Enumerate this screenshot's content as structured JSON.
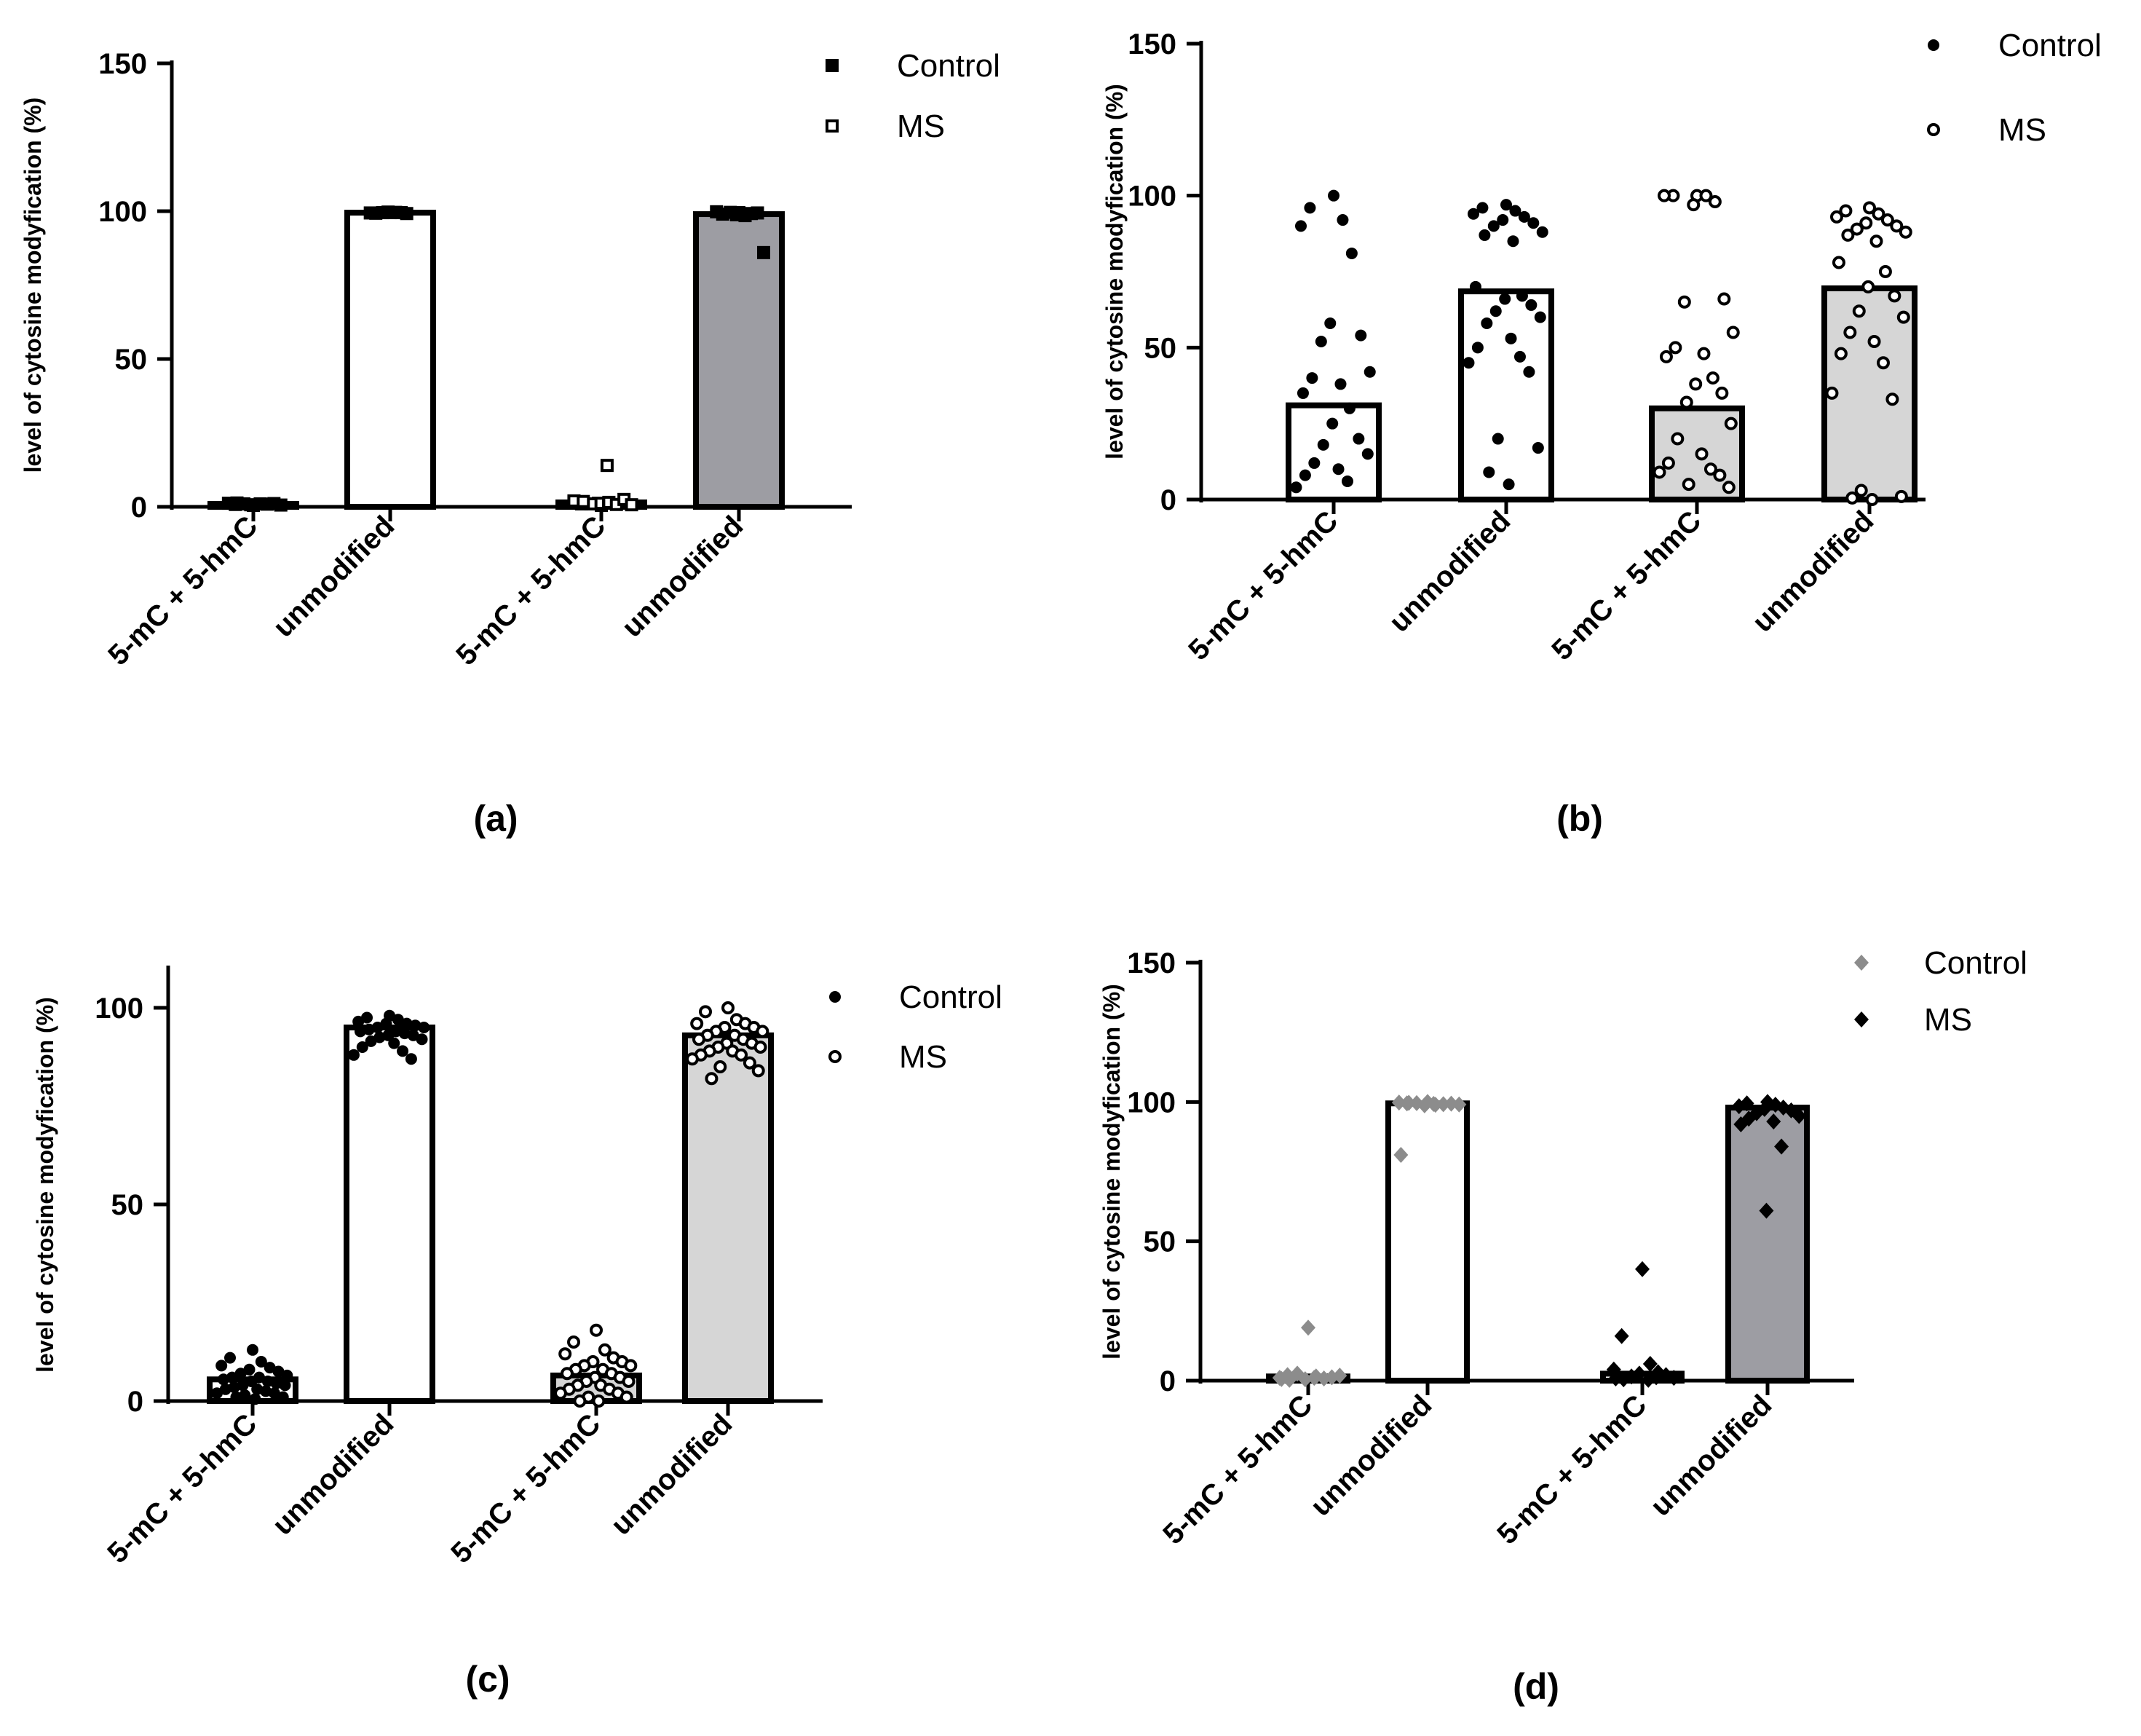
{
  "figure": {
    "panels": [
      {
        "label": "(a)"
      },
      {
        "label": "(b)"
      },
      {
        "label": "(c)"
      },
      {
        "label": "(d)"
      }
    ]
  },
  "chart_data": [
    {
      "id": "a",
      "type": "bar",
      "title": "",
      "xlabel": "",
      "ylabel": "level of cytosine modyfication (%)",
      "ylim": [
        0,
        150
      ],
      "yticks": [
        0,
        50,
        100,
        150
      ],
      "categories": [
        "5-mC + 5-hmC",
        "unmodified",
        "5-mC + 5-hmC",
        "unmodified"
      ],
      "groups": [
        "Control",
        "Control",
        "MS",
        "MS"
      ],
      "values": [
        1,
        99.5,
        1.5,
        99
      ],
      "bar_fills": [
        "#ffffff",
        "#ffffff",
        "#ffffff",
        "#9d9da3"
      ],
      "marker_styles": [
        "filled-square",
        "filled-square",
        "open-square",
        "filled-square"
      ],
      "points": [
        [
          0.5,
          0.8,
          1.0,
          1.2,
          0.9,
          0.7,
          1.1,
          1.0,
          0.6,
          1.3
        ],
        [
          99.5,
          99.3,
          99.6,
          99.4,
          99.5,
          99.7,
          99.2,
          99.5
        ],
        [
          0.5,
          1.0,
          1.5,
          2.0,
          0.8,
          1.2,
          2.5,
          1.0,
          0.7,
          1.8,
          14
        ],
        [
          99.5,
          99.0,
          98.5,
          99.8,
          99.2,
          98.8,
          99.4,
          99.6,
          86
        ]
      ],
      "legend": [
        {
          "name": "Control",
          "marker": "filled-square"
        },
        {
          "name": "MS",
          "marker": "open-square"
        }
      ],
      "legend_position": "top-right"
    },
    {
      "id": "b",
      "type": "bar",
      "title": "",
      "xlabel": "",
      "ylabel": "level of cytosine modyfication (%)",
      "ylim": [
        0,
        150
      ],
      "yticks": [
        0,
        50,
        100,
        150
      ],
      "categories": [
        "5-mC + 5-hmC",
        "unmodified",
        "5-mC + 5-hmC",
        "unmodified"
      ],
      "groups": [
        "Control",
        "Control",
        "MS",
        "MS"
      ],
      "values": [
        31,
        68.5,
        30,
        69.5
      ],
      "bar_fills": [
        "#ffffff",
        "#ffffff",
        "#d6d6d6",
        "#d6d6d6"
      ],
      "marker_styles": [
        "filled-circle",
        "filled-circle",
        "open-circle",
        "open-circle"
      ],
      "points": [
        [
          100,
          96,
          92,
          90,
          81,
          58,
          54,
          52,
          42,
          40,
          38,
          35,
          30,
          25,
          20,
          18,
          15,
          12,
          10,
          8,
          6,
          4
        ],
        [
          97,
          96,
          95,
          94,
          93,
          92,
          91,
          90,
          88,
          87,
          85,
          70,
          67,
          66,
          64,
          62,
          60,
          58,
          53,
          50,
          47,
          45,
          42,
          20,
          17,
          9,
          5
        ],
        [
          100,
          100,
          100,
          100,
          98,
          97,
          66,
          65,
          55,
          50,
          48,
          47,
          40,
          38,
          35,
          32,
          25,
          20,
          15,
          12,
          10,
          9,
          8,
          5,
          4
        ],
        [
          96,
          95,
          94,
          93,
          92,
          91,
          90,
          89,
          88,
          87,
          85,
          78,
          75,
          70,
          67,
          62,
          60,
          55,
          52,
          48,
          45,
          35,
          33,
          3,
          1,
          0.5,
          0
        ]
      ],
      "legend": [
        {
          "name": "Control",
          "marker": "filled-circle"
        },
        {
          "name": "MS",
          "marker": "open-circle"
        }
      ],
      "legend_position": "top-right"
    },
    {
      "id": "c",
      "type": "bar",
      "title": "",
      "xlabel": "",
      "ylabel": "level of cytosine modyfication (%)",
      "ylim": [
        0,
        110
      ],
      "yticks": [
        0,
        50,
        100
      ],
      "categories": [
        "5-mC + 5-hmC",
        "unmodified",
        "5-mC + 5-hmC",
        "unmodified"
      ],
      "groups": [
        "Control",
        "Control",
        "MS",
        "MS"
      ],
      "values": [
        5.5,
        95,
        6.5,
        93
      ],
      "bar_fills": [
        "#ffffff",
        "#ffffff",
        "#d6d6d6",
        "#d6d6d6"
      ],
      "marker_styles": [
        "filled-circle",
        "filled-circle",
        "open-circle",
        "open-circle"
      ],
      "points": [
        [
          13,
          11,
          10,
          9,
          8.5,
          8,
          7.5,
          7,
          6.5,
          6,
          6,
          5.5,
          5,
          5,
          4.5,
          4,
          4,
          3.5,
          3,
          3,
          2.5,
          2,
          2,
          1.5,
          1,
          1,
          0.5
        ],
        [
          98,
          97.5,
          97,
          96.5,
          96,
          96,
          95.5,
          95,
          95,
          94.5,
          94,
          94,
          93.5,
          93,
          93,
          92.5,
          92,
          91.5,
          91,
          90,
          89,
          88,
          87
        ],
        [
          18,
          15,
          13,
          12,
          11,
          10,
          10,
          9,
          9,
          8,
          8,
          7,
          7,
          6,
          6,
          5,
          5,
          4,
          4,
          3,
          3,
          2,
          2,
          1,
          1,
          0,
          0
        ],
        [
          100,
          99,
          97,
          96,
          96,
          95,
          95,
          94,
          94,
          93,
          93,
          92,
          92,
          91,
          91,
          90,
          90,
          89,
          89,
          88,
          88,
          87,
          86,
          85,
          84,
          82
        ]
      ],
      "legend": [
        {
          "name": "Control",
          "marker": "filled-circle"
        },
        {
          "name": "MS",
          "marker": "open-circle"
        }
      ],
      "legend_position": "top-right"
    },
    {
      "id": "d",
      "type": "bar",
      "title": "",
      "xlabel": "",
      "ylabel": "level of cytosine modyfication (%)",
      "ylim": [
        0,
        150
      ],
      "yticks": [
        0,
        50,
        100,
        150
      ],
      "categories": [
        "5-mC + 5-hmC",
        "unmodified",
        "5-mC + 5-hmC",
        "unmodified"
      ],
      "groups": [
        "Control",
        "Control",
        "MS",
        "MS"
      ],
      "values": [
        1.5,
        99.5,
        2.5,
        98
      ],
      "bar_fills": [
        "#ffffff",
        "#ffffff",
        "#ffffff",
        "#9d9da3"
      ],
      "marker_styles": [
        "gray-diamond",
        "gray-diamond",
        "black-diamond",
        "black-diamond"
      ],
      "points": [
        [
          19,
          2,
          1.5,
          1,
          0.8,
          0.5,
          1.2,
          2.5,
          1.8,
          0.3,
          1,
          0.6
        ],
        [
          100,
          99.5,
          99,
          99.8,
          99.2,
          98.8,
          99.4,
          99.6,
          99.1,
          99.7,
          99.3,
          81
        ],
        [
          40,
          16,
          6,
          4,
          3,
          2.5,
          2,
          1.5,
          1,
          0.5,
          0.3,
          0.8,
          1.2
        ],
        [
          100,
          99.5,
          99,
          98.5,
          98,
          97.5,
          97,
          96,
          95,
          94,
          93,
          92,
          84,
          61
        ]
      ],
      "legend": [
        {
          "name": "Control",
          "marker": "gray-diamond"
        },
        {
          "name": "MS",
          "marker": "black-diamond"
        }
      ],
      "legend_position": "top-right"
    }
  ]
}
